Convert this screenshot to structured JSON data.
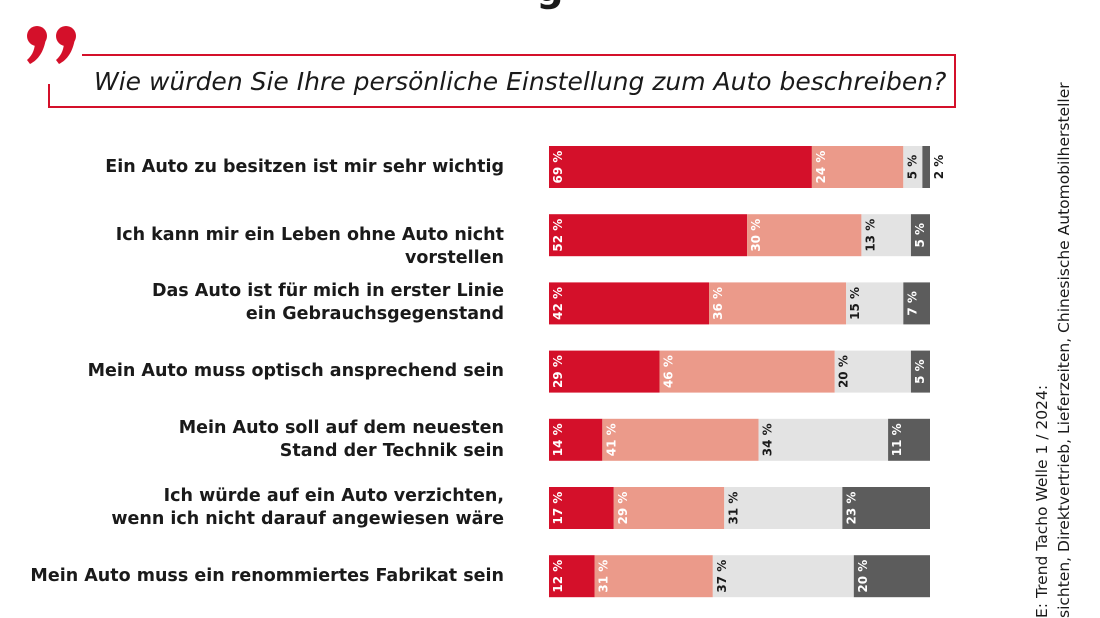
{
  "header": {
    "title_partial": "g",
    "question": "Wie würden Sie Ihre persönliche Einstellung zum Auto beschreiben?"
  },
  "colors": {
    "accent": "#d4102a",
    "series": [
      "#d4102a",
      "#eb9a8a",
      "#e3e3e3",
      "#5c5c5c"
    ]
  },
  "icons": {
    "quote": "quotation-mark-icon"
  },
  "chart_data": {
    "type": "bar",
    "orientation": "horizontal",
    "stacked": true,
    "categories": [
      "Ein Auto zu besitzen ist mir sehr wichtig",
      "Ich kann mir ein Leben ohne Auto nicht vorstellen",
      "Das Auto ist für mich in erster Linie\nein Gebrauchsgegenstand",
      "Mein Auto muss optisch ansprechend sein",
      "Mein Auto soll auf dem neuesten\nStand der Technik sein",
      "Ich würde auf ein Auto verzichten,\nwenn ich nicht darauf angewiesen wäre",
      "Mein Auto muss ein renommiertes Fabrikat sein"
    ],
    "series": [
      {
        "values": [
          69,
          52,
          42,
          29,
          14,
          17,
          12
        ]
      },
      {
        "values": [
          24,
          30,
          36,
          46,
          41,
          29,
          31
        ]
      },
      {
        "values": [
          5,
          13,
          15,
          20,
          34,
          31,
          37
        ]
      },
      {
        "values": [
          2,
          5,
          7,
          5,
          11,
          23,
          20
        ]
      }
    ],
    "unit": "%",
    "xlim": [
      0,
      100
    ],
    "legend": "none",
    "grid": false
  },
  "source": {
    "line1": "E: Trend Tacho Welle 1 / 2024:",
    "line2": "sichten, Direktvertrieb, Lieferzeiten, Chinesische Automobilhersteller"
  }
}
